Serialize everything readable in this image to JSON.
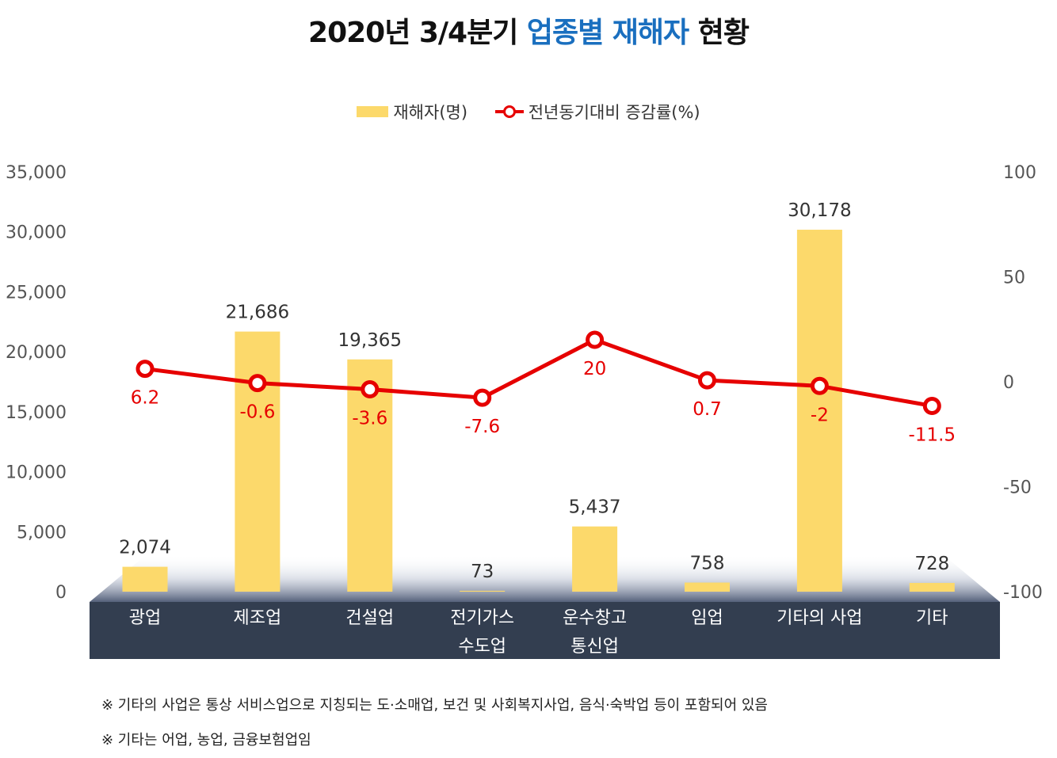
{
  "title": {
    "prefix": "2020년 3/4분기",
    "highlight": "업종별 재해자",
    "suffix": "현황"
  },
  "legend": {
    "bar_label": "재해자(명)",
    "line_label": "전년동기대비 증감률(%)"
  },
  "colors": {
    "bar": "#fcd96b",
    "line": "#e60000",
    "highlight_title": "#1a6fbf",
    "category_band": "#333e50"
  },
  "chart_data": {
    "type": "bar",
    "categories": [
      [
        "광업"
      ],
      [
        "제조업"
      ],
      [
        "건설업"
      ],
      [
        "전기가스",
        "수도업"
      ],
      [
        "운수창고",
        "통신업"
      ],
      [
        "임업"
      ],
      [
        "기타의 사업"
      ],
      [
        "기타"
      ]
    ],
    "series": [
      {
        "name": "재해자(명)",
        "type": "bar",
        "axis": "left",
        "values": [
          2074,
          21686,
          19365,
          73,
          5437,
          758,
          30178,
          728
        ],
        "labels": [
          "2,074",
          "21,686",
          "19,365",
          "73",
          "5,437",
          "758",
          "30,178",
          "728"
        ]
      },
      {
        "name": "전년동기대비 증감률(%)",
        "type": "line",
        "axis": "right",
        "values": [
          6.2,
          -0.6,
          -3.6,
          -7.6,
          20,
          0.7,
          -2,
          -11.5
        ],
        "labels": [
          "6.2",
          "-0.6",
          "-3.6",
          "-7.6",
          "20",
          "0.7",
          "-2",
          "-11.5"
        ]
      }
    ],
    "y_left": {
      "range": [
        0,
        35000
      ],
      "ticks": [
        0,
        5000,
        10000,
        15000,
        20000,
        25000,
        30000,
        35000
      ],
      "tick_labels": [
        "0",
        "5,000",
        "10,000",
        "15,000",
        "20,000",
        "25,000",
        "30,000",
        "35,000"
      ]
    },
    "y_right": {
      "range": [
        -100,
        100
      ],
      "ticks": [
        -100,
        -50,
        0,
        50,
        100
      ],
      "tick_labels": [
        "-100",
        "-50",
        "0",
        "50",
        "100"
      ]
    },
    "grid": false,
    "legend_position": "top-center"
  },
  "footnotes": [
    "※ 기타의 사업은 통상 서비스업으로 지칭되는 도·소매업, 보건 및 사회복지사업, 음식·숙박업 등이 포함되어 있음",
    "※ 기타는 어업, 농업, 금융보험업임"
  ]
}
